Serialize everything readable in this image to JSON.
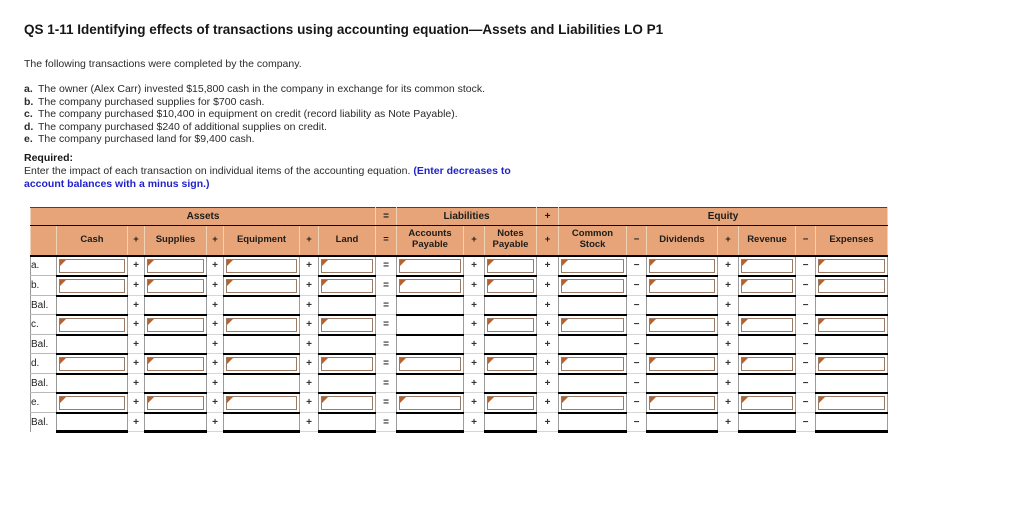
{
  "title": "QS 1-11 Identifying effects of transactions using accounting equation—Assets and Liabilities LO P1",
  "intro": "The following transactions were completed by the company.",
  "transactions": [
    {
      "letter": "a.",
      "text": "The owner (Alex Carr) invested $15,800 cash in the company in exchange for its common stock."
    },
    {
      "letter": "b.",
      "text": "The company purchased supplies for $700 cash."
    },
    {
      "letter": "c.",
      "text": "The company purchased $10,400 in equipment on credit (record liability as Note Payable)."
    },
    {
      "letter": "d.",
      "text": "The company purchased $240 of additional supplies on credit."
    },
    {
      "letter": "e.",
      "text": "The company purchased land for $9,400 cash."
    }
  ],
  "required": {
    "heading": "Required:",
    "text": "Enter the impact of each transaction on individual items of the accounting equation.",
    "emphasis": "(Enter decreases to account balances with a minus sign.)"
  },
  "worksheet": {
    "colors": {
      "header_bg": "#e6a478",
      "box_border": "#9a7a62",
      "flag": "#b5622e",
      "emphasis_blue": "#2222cc"
    },
    "groups": [
      {
        "key": "assets",
        "label": "Assets",
        "span": 8
      },
      {
        "key": "equals-op",
        "label": "=",
        "span": 1
      },
      {
        "key": "liabilities",
        "label": "Liabilities",
        "span": 3
      },
      {
        "key": "plus-op",
        "label": "+",
        "span": 1
      },
      {
        "key": "equity",
        "label": "Equity",
        "span": 7
      }
    ],
    "columns": [
      {
        "key": "label",
        "header": ""
      },
      {
        "key": "cash",
        "header": "Cash"
      },
      {
        "op": "+"
      },
      {
        "key": "supplies",
        "header": "Supplies"
      },
      {
        "op": "+"
      },
      {
        "key": "equipment",
        "header": "Equipment"
      },
      {
        "op": "+"
      },
      {
        "key": "land",
        "header": "Land"
      },
      {
        "op": "="
      },
      {
        "key": "accounts_payable",
        "header": "Accounts Payable"
      },
      {
        "op": "+"
      },
      {
        "key": "notes_payable",
        "header": "Notes Payable"
      },
      {
        "op": "+"
      },
      {
        "key": "common_stock",
        "header": "Common Stock"
      },
      {
        "op": "−"
      },
      {
        "key": "dividends",
        "header": "Dividends"
      },
      {
        "op": "+"
      },
      {
        "key": "revenue",
        "header": "Revenue"
      },
      {
        "op": "−"
      },
      {
        "key": "expenses",
        "header": "Expenses"
      }
    ],
    "rows": [
      {
        "label": "a.",
        "type": "entry",
        "inputs": [
          1,
          1,
          1,
          1,
          1,
          1,
          1,
          1,
          1,
          1
        ]
      },
      {
        "label": "b.",
        "type": "entry",
        "inputs": [
          1,
          1,
          1,
          1,
          1,
          1,
          1,
          1,
          1,
          1
        ]
      },
      {
        "label": "Bal.",
        "type": "balance",
        "inputs": [
          0,
          0,
          0,
          0,
          0,
          0,
          0,
          0,
          0,
          0
        ]
      },
      {
        "label": "c.",
        "type": "entry",
        "inputs": [
          1,
          1,
          1,
          1,
          0,
          1,
          1,
          1,
          1,
          1
        ]
      },
      {
        "label": "Bal.",
        "type": "balance",
        "inputs": [
          0,
          0,
          0,
          0,
          0,
          0,
          0,
          0,
          0,
          0
        ]
      },
      {
        "label": "d.",
        "type": "entry",
        "inputs": [
          1,
          1,
          1,
          1,
          1,
          1,
          1,
          1,
          1,
          1
        ]
      },
      {
        "label": "Bal.",
        "type": "balance",
        "inputs": [
          0,
          0,
          0,
          0,
          0,
          0,
          0,
          0,
          0,
          0
        ]
      },
      {
        "label": "e.",
        "type": "entry",
        "inputs": [
          1,
          1,
          1,
          1,
          1,
          1,
          1,
          1,
          1,
          1
        ]
      },
      {
        "label": "Bal.",
        "type": "balance",
        "inputs": [
          0,
          0,
          0,
          0,
          0,
          0,
          0,
          0,
          0,
          0
        ]
      }
    ]
  }
}
